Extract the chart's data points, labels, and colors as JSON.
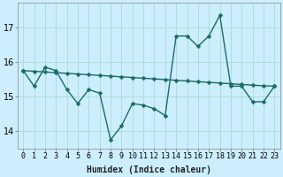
{
  "title": "",
  "xlabel": "Humidex (Indice chaleur)",
  "background_color": "#cceeff",
  "grid_color": "#aaddcc",
  "line_color": "#1a6b6b",
  "x_values": [
    0,
    1,
    2,
    3,
    4,
    5,
    6,
    7,
    8,
    9,
    10,
    11,
    12,
    13,
    14,
    15,
    16,
    17,
    18,
    19,
    20,
    21,
    22,
    23
  ],
  "y_zigzag": [
    15.75,
    15.3,
    15.85,
    15.75,
    15.2,
    14.8,
    15.2,
    15.1,
    13.75,
    14.15,
    14.8,
    14.75,
    14.65,
    14.45,
    16.75,
    16.75,
    16.45,
    16.75,
    17.35,
    15.3,
    15.3,
    14.85,
    14.85,
    15.3
  ],
  "y_flat": [
    15.75,
    15.73,
    15.71,
    15.69,
    15.67,
    15.65,
    15.63,
    15.61,
    15.59,
    15.57,
    15.55,
    15.53,
    15.51,
    15.49,
    15.47,
    15.45,
    15.43,
    15.41,
    15.39,
    15.37,
    15.35,
    15.33,
    15.31,
    15.3
  ],
  "ylim": [
    13.5,
    17.7
  ],
  "yticks": [
    14,
    15,
    16,
    17
  ],
  "xticks": [
    0,
    1,
    2,
    3,
    4,
    5,
    6,
    7,
    8,
    9,
    10,
    11,
    12,
    13,
    14,
    15,
    16,
    17,
    18,
    19,
    20,
    21,
    22,
    23
  ],
  "xtick_labels": [
    "0",
    "1",
    "2",
    "3",
    "4",
    "5",
    "6",
    "7",
    "8",
    "9",
    "10",
    "11",
    "12",
    "13",
    "14",
    "15",
    "16",
    "17",
    "18",
    "19",
    "20",
    "21",
    "22",
    "23"
  ],
  "xlabel_fontsize": 7,
  "xlabel_fontweight": "bold",
  "tick_fontsize": 6,
  "ytick_fontsize": 7,
  "marker_size": 2.5,
  "line_width": 1.0
}
